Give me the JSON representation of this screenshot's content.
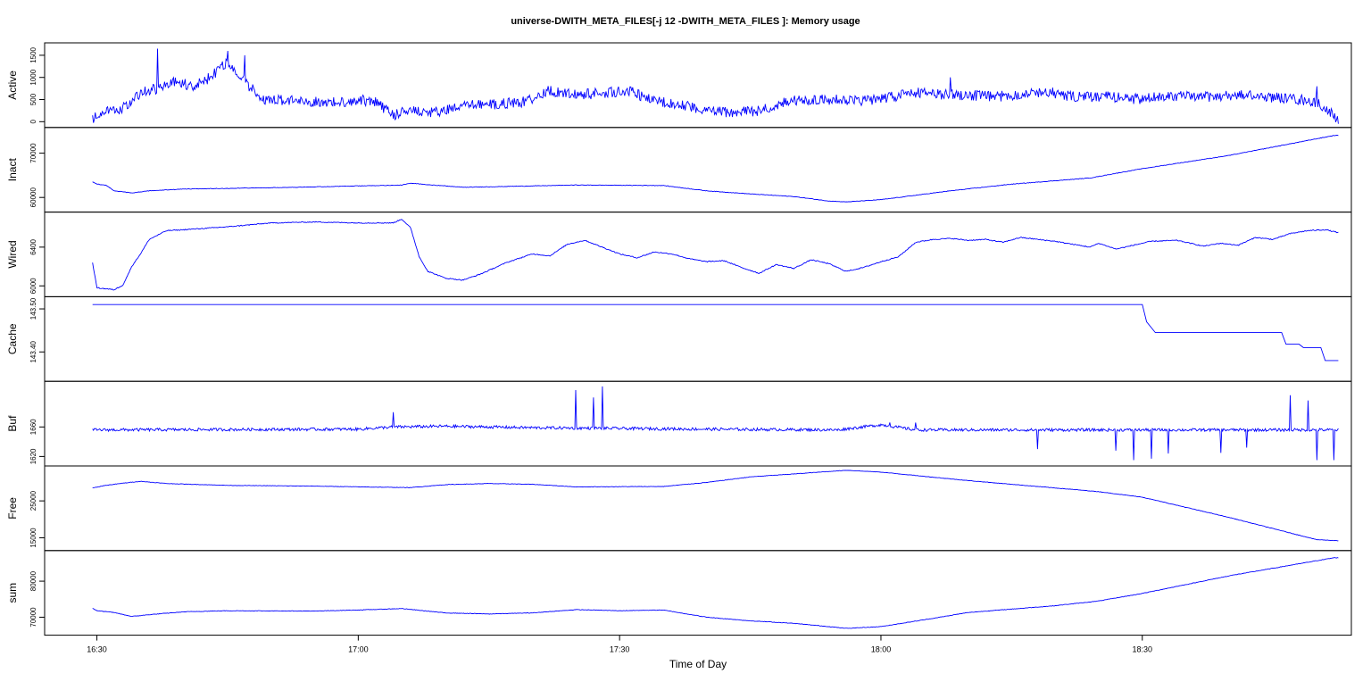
{
  "chart_data": {
    "type": "line",
    "title": "universe-DWITH_META_FILES[-j 12 -DWITH_META_FILES ]: Memory usage",
    "xlabel": "Time of Day",
    "x_ticks": [
      "16:30",
      "17:00",
      "17:30",
      "18:00",
      "18:30"
    ],
    "x_tick_minutes": [
      990,
      1020,
      1050,
      1080,
      1110
    ],
    "xlim_minutes": [
      984,
      1134
    ],
    "x_data_range_minutes": [
      989.5,
      1132.5
    ],
    "line_color": "#0000ff",
    "grid": false,
    "legend": "none",
    "panels": [
      {
        "name": "Active",
        "ylim": [
          -50,
          1700
        ],
        "yticks": [
          0,
          500,
          1000,
          1500
        ],
        "ytick_labels": [
          "0",
          "500",
          "1000",
          "1500"
        ],
        "noise": 120,
        "points": [
          [
            989.5,
            50
          ],
          [
            991,
            250
          ],
          [
            993,
            300
          ],
          [
            995,
            650
          ],
          [
            997,
            750
          ],
          [
            999,
            900
          ],
          [
            1001,
            800
          ],
          [
            1003,
            1000
          ],
          [
            1005,
            1350
          ],
          [
            1007,
            900
          ],
          [
            1009,
            500
          ],
          [
            1012,
            480
          ],
          [
            1015,
            450
          ],
          [
            1018,
            430
          ],
          [
            1020,
            500
          ],
          [
            1022,
            440
          ],
          [
            1024,
            150
          ],
          [
            1026,
            280
          ],
          [
            1028,
            200
          ],
          [
            1030,
            250
          ],
          [
            1033,
            380
          ],
          [
            1036,
            400
          ],
          [
            1039,
            450
          ],
          [
            1042,
            700
          ],
          [
            1045,
            600
          ],
          [
            1048,
            650
          ],
          [
            1051,
            700
          ],
          [
            1054,
            450
          ],
          [
            1057,
            400
          ],
          [
            1060,
            250
          ],
          [
            1063,
            200
          ],
          [
            1066,
            250
          ],
          [
            1069,
            450
          ],
          [
            1072,
            500
          ],
          [
            1075,
            500
          ],
          [
            1078,
            480
          ],
          [
            1081,
            550
          ],
          [
            1084,
            650
          ],
          [
            1087,
            620
          ],
          [
            1090,
            600
          ],
          [
            1093,
            560
          ],
          [
            1096,
            620
          ],
          [
            1099,
            680
          ],
          [
            1102,
            560
          ],
          [
            1104,
            560
          ],
          [
            1107,
            560
          ],
          [
            1110,
            500
          ],
          [
            1113,
            600
          ],
          [
            1116,
            550
          ],
          [
            1119,
            580
          ],
          [
            1122,
            600
          ],
          [
            1125,
            550
          ],
          [
            1128,
            500
          ],
          [
            1130,
            430
          ],
          [
            1132,
            150
          ],
          [
            1132.5,
            30
          ]
        ],
        "spikes": [
          [
            997,
            1650
          ],
          [
            1005,
            1600
          ],
          [
            1007,
            1500
          ],
          [
            1088,
            1000
          ],
          [
            1130,
            800
          ]
        ]
      },
      {
        "name": "Inact",
        "ylim": [
          57500,
          75000
        ],
        "yticks": [
          60000,
          70000
        ],
        "ytick_labels": [
          "60000",
          "70000"
        ],
        "noise": 60,
        "points": [
          [
            989.5,
            63500
          ],
          [
            990,
            63000
          ],
          [
            991,
            62800
          ],
          [
            992,
            61500
          ],
          [
            994,
            61000
          ],
          [
            996,
            61500
          ],
          [
            1000,
            61900
          ],
          [
            1010,
            62200
          ],
          [
            1020,
            62600
          ],
          [
            1025,
            62800
          ],
          [
            1026,
            63200
          ],
          [
            1028,
            62900
          ],
          [
            1032,
            62300
          ],
          [
            1040,
            62600
          ],
          [
            1045,
            62800
          ],
          [
            1055,
            62700
          ],
          [
            1060,
            61500
          ],
          [
            1065,
            60800
          ],
          [
            1070,
            60200
          ],
          [
            1074,
            59200
          ],
          [
            1076,
            59000
          ],
          [
            1080,
            59500
          ],
          [
            1088,
            61500
          ],
          [
            1095,
            63000
          ],
          [
            1104,
            64400
          ],
          [
            1110,
            66500
          ],
          [
            1120,
            69500
          ],
          [
            1132,
            74000
          ]
        ]
      },
      {
        "name": "Wired",
        "ylim": [
          5925,
          6725
        ],
        "yticks": [
          6000,
          6400
        ],
        "ytick_labels": [
          "6000",
          "6400"
        ],
        "noise": 5,
        "points": [
          [
            989.5,
            6240
          ],
          [
            990,
            5980
          ],
          [
            991,
            5970
          ],
          [
            992,
            5960
          ],
          [
            993,
            6010
          ],
          [
            994,
            6200
          ],
          [
            995,
            6330
          ],
          [
            996,
            6480
          ],
          [
            998,
            6570
          ],
          [
            1000,
            6580
          ],
          [
            1005,
            6610
          ],
          [
            1010,
            6650
          ],
          [
            1015,
            6660
          ],
          [
            1020,
            6650
          ],
          [
            1024,
            6650
          ],
          [
            1025,
            6690
          ],
          [
            1026,
            6600
          ],
          [
            1027,
            6300
          ],
          [
            1028,
            6150
          ],
          [
            1030,
            6080
          ],
          [
            1032,
            6060
          ],
          [
            1034,
            6120
          ],
          [
            1037,
            6240
          ],
          [
            1040,
            6330
          ],
          [
            1042,
            6310
          ],
          [
            1044,
            6430
          ],
          [
            1046,
            6470
          ],
          [
            1048,
            6400
          ],
          [
            1050,
            6330
          ],
          [
            1052,
            6290
          ],
          [
            1054,
            6350
          ],
          [
            1056,
            6330
          ],
          [
            1058,
            6280
          ],
          [
            1060,
            6250
          ],
          [
            1062,
            6260
          ],
          [
            1064,
            6190
          ],
          [
            1066,
            6130
          ],
          [
            1068,
            6220
          ],
          [
            1070,
            6180
          ],
          [
            1072,
            6270
          ],
          [
            1074,
            6230
          ],
          [
            1076,
            6150
          ],
          [
            1078,
            6190
          ],
          [
            1080,
            6250
          ],
          [
            1082,
            6300
          ],
          [
            1084,
            6450
          ],
          [
            1086,
            6480
          ],
          [
            1088,
            6490
          ],
          [
            1090,
            6470
          ],
          [
            1092,
            6480
          ],
          [
            1094,
            6450
          ],
          [
            1096,
            6500
          ],
          [
            1098,
            6480
          ],
          [
            1100,
            6460
          ],
          [
            1102,
            6430
          ],
          [
            1104,
            6400
          ],
          [
            1105,
            6440
          ],
          [
            1107,
            6380
          ],
          [
            1109,
            6420
          ],
          [
            1111,
            6460
          ],
          [
            1114,
            6470
          ],
          [
            1117,
            6410
          ],
          [
            1119,
            6440
          ],
          [
            1121,
            6420
          ],
          [
            1123,
            6500
          ],
          [
            1125,
            6480
          ],
          [
            1127,
            6540
          ],
          [
            1129,
            6570
          ],
          [
            1131,
            6580
          ],
          [
            1132.5,
            6550
          ]
        ]
      },
      {
        "name": "Cache",
        "ylim": [
          143.34,
          143.52
        ],
        "yticks": [
          143.4,
          143.5
        ],
        "ytick_labels": [
          "143.40",
          "143.50"
        ],
        "noise": 0,
        "points": [
          [
            989.5,
            143.51
          ],
          [
            1110,
            143.51
          ],
          [
            1110.5,
            143.47
          ],
          [
            1111.5,
            143.445
          ],
          [
            1126,
            143.445
          ],
          [
            1126.5,
            143.418
          ],
          [
            1128,
            143.418
          ],
          [
            1128.5,
            143.41
          ],
          [
            1130.5,
            143.41
          ],
          [
            1131,
            143.38
          ],
          [
            1132.5,
            143.38
          ]
        ]
      },
      {
        "name": "Buf",
        "ylim": [
          1612,
          1717
        ],
        "yticks": [
          1620,
          1660
        ],
        "ytick_labels": [
          "1620",
          "1660"
        ],
        "noise": 2,
        "points": [
          [
            989.5,
            1656
          ],
          [
            1020,
            1657
          ],
          [
            1024,
            1660
          ],
          [
            1030,
            1661
          ],
          [
            1040,
            1659
          ],
          [
            1050,
            1658
          ],
          [
            1060,
            1657
          ],
          [
            1075,
            1656
          ],
          [
            1080,
            1663
          ],
          [
            1084,
            1656
          ],
          [
            1132.5,
            1656
          ]
        ],
        "spikes": [
          [
            1024,
            1680
          ],
          [
            1045,
            1710
          ],
          [
            1047,
            1700
          ],
          [
            1048,
            1715
          ],
          [
            1081,
            1666
          ],
          [
            1084,
            1666
          ],
          [
            1127,
            1703
          ],
          [
            1129,
            1696
          ]
        ],
        "dips": [
          [
            1098,
            1630
          ],
          [
            1107,
            1628
          ],
          [
            1109,
            1615
          ],
          [
            1111,
            1617
          ],
          [
            1113,
            1624
          ],
          [
            1119,
            1625
          ],
          [
            1122,
            1632
          ],
          [
            1130,
            1615
          ],
          [
            1132,
            1615
          ]
        ]
      },
      {
        "name": "Free",
        "ylim": [
          12500,
          33500
        ],
        "yticks": [
          15000,
          25000
        ],
        "ytick_labels": [
          "15000",
          "25000"
        ],
        "noise": 60,
        "points": [
          [
            989.5,
            28500
          ],
          [
            991,
            29200
          ],
          [
            993,
            29800
          ],
          [
            995,
            30300
          ],
          [
            998,
            29700
          ],
          [
            1005,
            29200
          ],
          [
            1015,
            29000
          ],
          [
            1020,
            28800
          ],
          [
            1026,
            28600
          ],
          [
            1030,
            29400
          ],
          [
            1035,
            29700
          ],
          [
            1040,
            29500
          ],
          [
            1045,
            28800
          ],
          [
            1055,
            28900
          ],
          [
            1060,
            30000
          ],
          [
            1065,
            31500
          ],
          [
            1070,
            32300
          ],
          [
            1076,
            33300
          ],
          [
            1080,
            32800
          ],
          [
            1090,
            30500
          ],
          [
            1100,
            28500
          ],
          [
            1105,
            27500
          ],
          [
            1110,
            26000
          ],
          [
            1120,
            20500
          ],
          [
            1130,
            14500
          ],
          [
            1132.5,
            14200
          ]
        ]
      },
      {
        "name": "sum",
        "ylim": [
          66000,
          87500
        ],
        "yticks": [
          70000,
          80000
        ],
        "ytick_labels": [
          "70000",
          "80000"
        ],
        "noise": 70,
        "points": [
          [
            989.5,
            72500
          ],
          [
            990,
            71800
          ],
          [
            992,
            71300
          ],
          [
            994,
            70200
          ],
          [
            996,
            70700
          ],
          [
            1000,
            71500
          ],
          [
            1005,
            71800
          ],
          [
            1015,
            71700
          ],
          [
            1020,
            72000
          ],
          [
            1025,
            72400
          ],
          [
            1030,
            71200
          ],
          [
            1035,
            70900
          ],
          [
            1040,
            71200
          ],
          [
            1045,
            72100
          ],
          [
            1050,
            71800
          ],
          [
            1055,
            72000
          ],
          [
            1060,
            70000
          ],
          [
            1065,
            69000
          ],
          [
            1070,
            68300
          ],
          [
            1074,
            67400
          ],
          [
            1076,
            66900
          ],
          [
            1080,
            67400
          ],
          [
            1085,
            69300
          ],
          [
            1090,
            71300
          ],
          [
            1100,
            73200
          ],
          [
            1105,
            74500
          ],
          [
            1110,
            76600
          ],
          [
            1120,
            81500
          ],
          [
            1132,
            86500
          ]
        ]
      }
    ]
  }
}
